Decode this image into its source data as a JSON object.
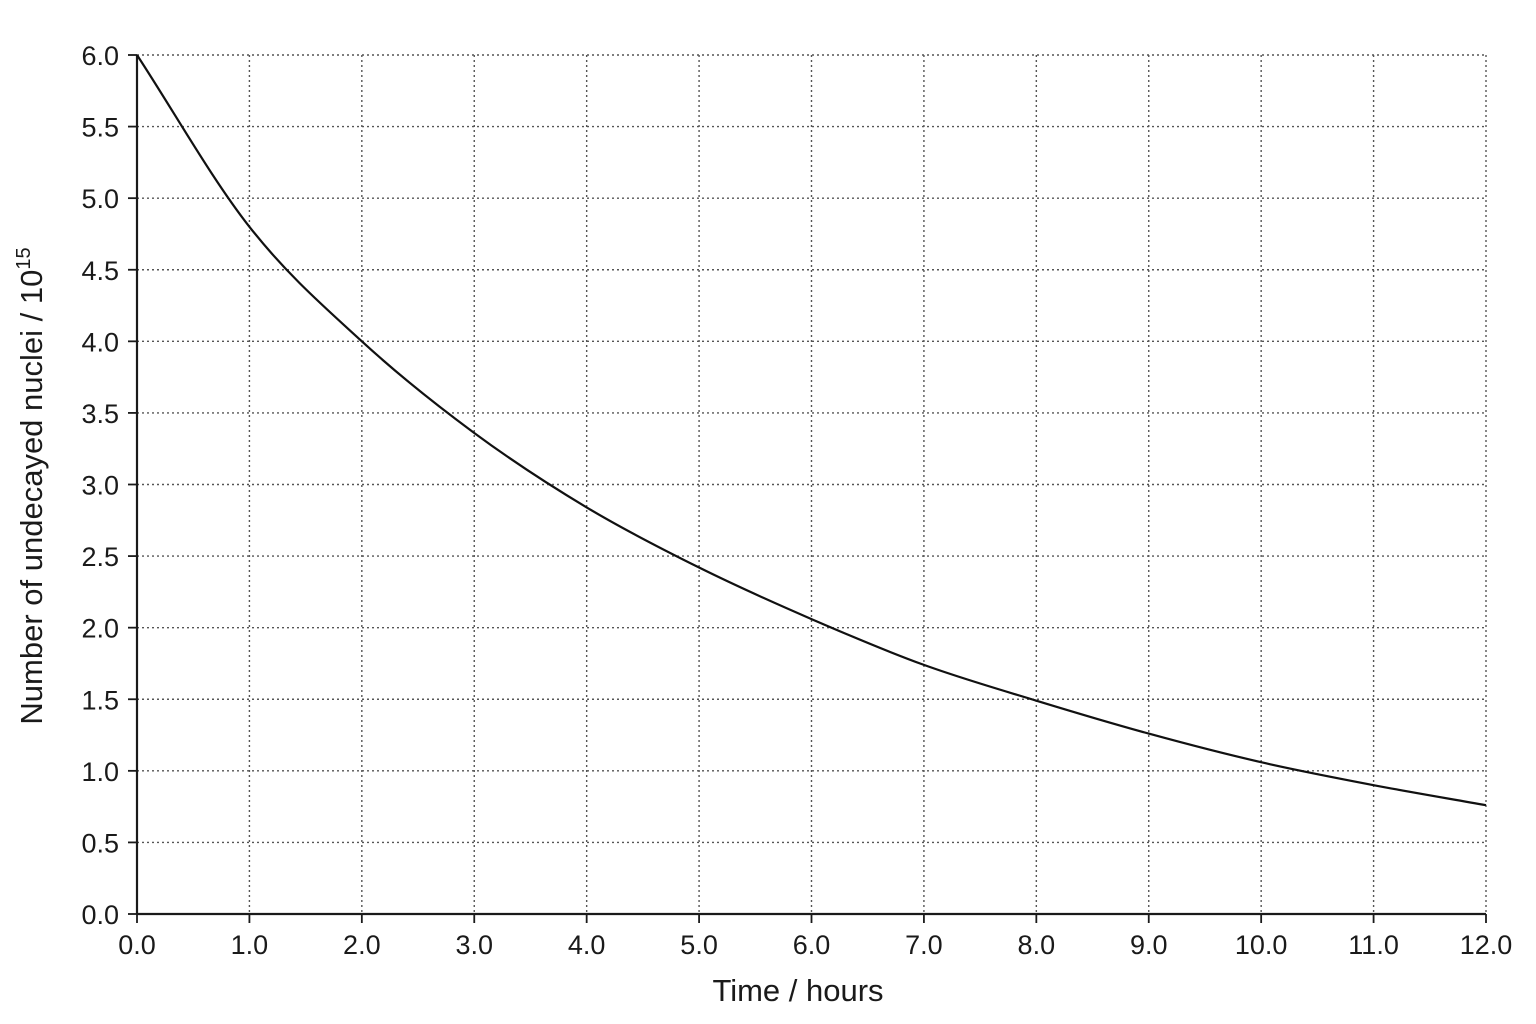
{
  "chart_data": {
    "type": "line",
    "xlabel": "Time / hours",
    "ylabel": "Number of undecayed nuclei / 10",
    "ylabel_exponent": "15",
    "xlim": [
      0,
      12
    ],
    "ylim": [
      0,
      6
    ],
    "grid": true,
    "x_ticks": [
      "0.0",
      "1.0",
      "2.0",
      "3.0",
      "4.0",
      "5.0",
      "6.0",
      "7.0",
      "8.0",
      "9.0",
      "10.0",
      "11.0",
      "12.0"
    ],
    "y_ticks": [
      "0.0",
      "0.5",
      "1.0",
      "1.5",
      "2.0",
      "2.5",
      "3.0",
      "3.5",
      "4.0",
      "4.5",
      "5.0",
      "5.5",
      "6.0"
    ],
    "series": [
      {
        "x": [
          0,
          1,
          2,
          3,
          4,
          5,
          6,
          7,
          8,
          9,
          10,
          11,
          12
        ],
        "y": [
          6.0,
          4.8,
          4.0,
          3.36,
          2.84,
          2.42,
          2.06,
          1.74,
          1.49,
          1.26,
          1.06,
          0.9,
          0.76
        ]
      }
    ]
  }
}
